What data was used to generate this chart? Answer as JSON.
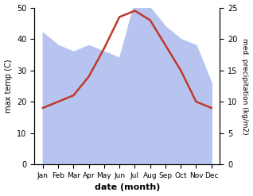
{
  "months": [
    "Jan",
    "Feb",
    "Mar",
    "Apr",
    "May",
    "Jun",
    "Jul",
    "Aug",
    "Sep",
    "Oct",
    "Nov",
    "Dec"
  ],
  "temperature": [
    18,
    20,
    22,
    28,
    37,
    47,
    49,
    46,
    38,
    30,
    20,
    18
  ],
  "precipitation_right": [
    21,
    19,
    18,
    19,
    18,
    17,
    26,
    25,
    22,
    20,
    19,
    13
  ],
  "temp_color": "#c0392b",
  "precip_color": "#b8c4f0",
  "left_ylim": [
    0,
    50
  ],
  "right_ylim": [
    0,
    25
  ],
  "left_yticks": [
    0,
    10,
    20,
    30,
    40,
    50
  ],
  "right_yticks": [
    0,
    5,
    10,
    15,
    20,
    25
  ],
  "xlabel": "date (month)",
  "ylabel_left": "max temp (C)",
  "ylabel_right": "med. precipitation (kg/m2)",
  "figsize": [
    3.18,
    2.47
  ],
  "dpi": 100
}
